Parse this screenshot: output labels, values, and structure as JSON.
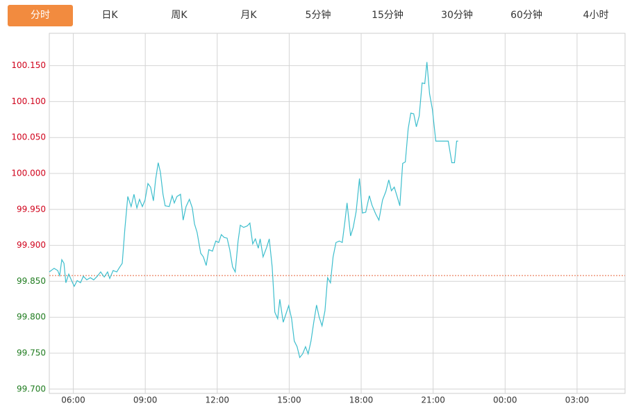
{
  "tabs": {
    "items": [
      "分时",
      "日K",
      "周K",
      "月K",
      "5分钟",
      "15分钟",
      "30分钟",
      "60分钟",
      "4小时"
    ],
    "active": 0
  },
  "chart_data": {
    "type": "line",
    "x": [
      5.0,
      5.2,
      5.35,
      5.43,
      5.52,
      5.61,
      5.69,
      5.81,
      5.93,
      6.04,
      6.16,
      6.3,
      6.42,
      6.56,
      6.71,
      6.85,
      7.0,
      7.14,
      7.29,
      7.43,
      7.52,
      7.66,
      7.81,
      7.92,
      8.04,
      8.15,
      8.27,
      8.41,
      8.53,
      8.65,
      8.76,
      8.88,
      8.99,
      9.11,
      9.22,
      9.34,
      9.43,
      9.54,
      9.63,
      9.74,
      9.83,
      10.0,
      10.12,
      10.21,
      10.32,
      10.47,
      10.58,
      10.7,
      10.84,
      10.96,
      11.05,
      11.16,
      11.31,
      11.42,
      11.54,
      11.65,
      11.8,
      11.94,
      12.06,
      12.17,
      12.29,
      12.41,
      12.52,
      12.64,
      12.75,
      12.87,
      12.96,
      13.1,
      13.25,
      13.36,
      13.48,
      13.59,
      13.71,
      13.79,
      13.91,
      14.06,
      14.17,
      14.29,
      14.4,
      14.52,
      14.61,
      14.75,
      14.87,
      14.98,
      15.1,
      15.21,
      15.33,
      15.44,
      15.56,
      15.68,
      15.79,
      15.91,
      16.02,
      16.14,
      16.25,
      16.37,
      16.49,
      16.6,
      16.72,
      16.83,
      16.95,
      17.09,
      17.21,
      17.32,
      17.41,
      17.56,
      17.67,
      17.79,
      17.93,
      18.05,
      18.19,
      18.34,
      18.45,
      18.6,
      18.74,
      18.89,
      19.03,
      19.15,
      19.26,
      19.38,
      19.49,
      19.61,
      19.73,
      19.84,
      19.96,
      20.07,
      20.19,
      20.3,
      20.42,
      20.54,
      20.65,
      20.74,
      20.85,
      20.97,
      21.11,
      21.26,
      21.46,
      21.63,
      21.78,
      21.89,
      21.98,
      22.04
    ],
    "series": [
      {
        "color": "#3dbecd",
        "values": [
          99.863,
          99.868,
          99.865,
          99.858,
          99.88,
          99.875,
          99.848,
          99.86,
          99.851,
          99.843,
          99.851,
          99.848,
          99.857,
          99.852,
          99.855,
          99.852,
          99.857,
          99.863,
          99.856,
          99.863,
          99.854,
          99.865,
          99.863,
          99.869,
          99.875,
          99.923,
          99.968,
          99.954,
          99.971,
          99.952,
          99.964,
          99.954,
          99.963,
          99.986,
          99.981,
          99.962,
          99.991,
          100.015,
          100.002,
          99.971,
          99.955,
          99.954,
          99.969,
          99.959,
          99.968,
          99.971,
          99.935,
          99.954,
          99.964,
          99.952,
          99.93,
          99.918,
          99.889,
          99.884,
          99.872,
          99.894,
          99.892,
          99.906,
          99.904,
          99.915,
          99.911,
          99.91,
          99.894,
          99.87,
          99.863,
          99.906,
          99.928,
          99.925,
          99.927,
          99.931,
          99.902,
          99.909,
          99.896,
          99.909,
          99.884,
          99.897,
          99.909,
          99.87,
          99.807,
          99.798,
          99.825,
          99.793,
          99.805,
          99.816,
          99.798,
          99.767,
          99.759,
          99.744,
          99.749,
          99.759,
          99.749,
          99.767,
          99.792,
          99.817,
          99.8,
          99.788,
          99.809,
          99.855,
          99.848,
          99.884,
          99.904,
          99.906,
          99.904,
          99.933,
          99.959,
          99.913,
          99.925,
          99.947,
          99.993,
          99.945,
          99.946,
          99.969,
          99.956,
          99.944,
          99.935,
          99.963,
          99.975,
          99.991,
          99.976,
          99.981,
          99.969,
          99.955,
          100.014,
          100.016,
          100.062,
          100.084,
          100.083,
          100.065,
          100.08,
          100.126,
          100.125,
          100.155,
          100.111,
          100.089,
          100.045,
          100.045,
          100.045,
          100.045,
          100.015,
          100.015,
          100.045,
          100.045
        ]
      }
    ],
    "reference": 99.858,
    "reference_color": "#e8643a",
    "up_color": "#d0021b",
    "down_color": "#1e7b1e",
    "xlim": [
      5,
      29
    ],
    "xticks": [
      {
        "value": 6,
        "label": "06:00"
      },
      {
        "value": 9,
        "label": "09:00"
      },
      {
        "value": 12,
        "label": "12:00"
      },
      {
        "value": 15,
        "label": "15:00"
      },
      {
        "value": 18,
        "label": "18:00"
      },
      {
        "value": 21,
        "label": "21:00"
      },
      {
        "value": 24,
        "label": "00:00"
      },
      {
        "value": 27,
        "label": "03:00"
      }
    ],
    "ylim": [
      99.694,
      100.195
    ],
    "yticks": [
      {
        "value": 99.7,
        "label": "99.700"
      },
      {
        "value": 99.75,
        "label": "99.750"
      },
      {
        "value": 99.8,
        "label": "99.800"
      },
      {
        "value": 99.85,
        "label": "99.850"
      },
      {
        "value": 99.9,
        "label": "99.900"
      },
      {
        "value": 99.95,
        "label": "99.950"
      },
      {
        "value": 100.0,
        "label": "100.000"
      },
      {
        "value": 100.05,
        "label": "100.050"
      },
      {
        "value": 100.1,
        "label": "100.100"
      },
      {
        "value": 100.15,
        "label": "100.150"
      }
    ],
    "grid": true
  }
}
